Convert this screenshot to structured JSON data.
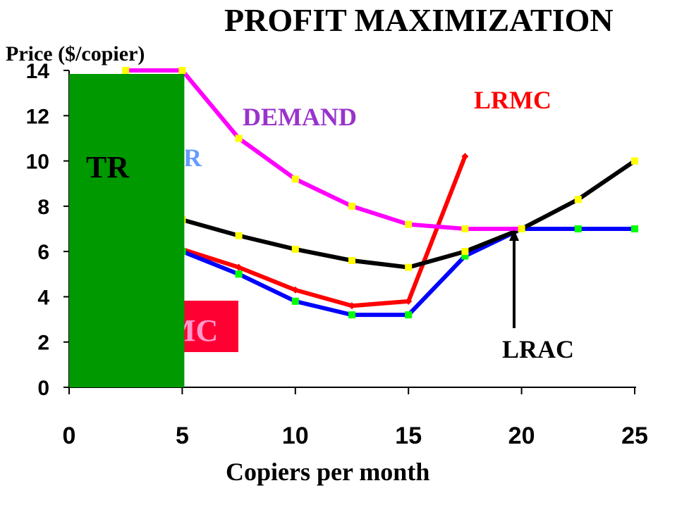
{
  "chart_data": {
    "type": "line",
    "title": "PROFIT MAXIMIZATION",
    "ylabel": "Price ($/copier)",
    "xlabel": "Copiers per month",
    "xlim": [
      0,
      25
    ],
    "ylim": [
      0,
      14
    ],
    "x_ticks": [
      "0",
      "5",
      "10",
      "15",
      "20",
      "25"
    ],
    "y_ticks": [
      "0",
      "2",
      "4",
      "6",
      "8",
      "10",
      "12",
      "14"
    ],
    "grid": false,
    "series": [
      {
        "name": "DEMAND",
        "color": "#ff00ff",
        "marker_color": "#ffff00",
        "points": [
          [
            2.5,
            14
          ],
          [
            5,
            14
          ],
          [
            7.5,
            11
          ],
          [
            10,
            9.2
          ],
          [
            12.5,
            8
          ],
          [
            15,
            7.2
          ],
          [
            17.5,
            7
          ],
          [
            20,
            7
          ]
        ]
      },
      {
        "name": "MR",
        "color": "#0000ff",
        "marker_color": "#00ff00",
        "points": [
          [
            2.5,
            7
          ],
          [
            5,
            6
          ],
          [
            7.5,
            5
          ],
          [
            10,
            3.8
          ],
          [
            12.5,
            3.2
          ],
          [
            15,
            3.2
          ],
          [
            17.5,
            5.8
          ],
          [
            20,
            7
          ],
          [
            22.5,
            7
          ],
          [
            25,
            7
          ]
        ]
      },
      {
        "name": "LRMC",
        "color": "#ff0000",
        "marker_color": "#ff0000",
        "points": [
          [
            2.5,
            7
          ],
          [
            5,
            6.1
          ],
          [
            7.5,
            5.3
          ],
          [
            10,
            4.3
          ],
          [
            12.5,
            3.6
          ],
          [
            15,
            3.8
          ],
          [
            17.5,
            10.2
          ]
        ]
      },
      {
        "name": "LRAC",
        "color": "#000000",
        "marker_color": "#ffff00",
        "points": [
          [
            2.5,
            8
          ],
          [
            5,
            7.4
          ],
          [
            7.5,
            6.7
          ],
          [
            10,
            6.1
          ],
          [
            12.5,
            5.6
          ],
          [
            15,
            5.3
          ],
          [
            17.5,
            6
          ],
          [
            20,
            7
          ],
          [
            22.5,
            8.3
          ],
          [
            25,
            10
          ]
        ]
      }
    ],
    "tr_box": {
      "label": "TR",
      "x_range": [
        0,
        5
      ],
      "y_range": [
        0,
        14
      ]
    },
    "mc_box": {
      "label": "MC"
    },
    "annotations": {
      "demand": "DEMAND",
      "mr": "MR",
      "lrmc": "LRMC",
      "lrac": "LRAC"
    },
    "colors": {
      "demand_label": "#9933cc",
      "mr_label": "#6699ff",
      "lrmc_label": "#ff0000",
      "lrac_label": "#000000",
      "tr_fill": "#009900",
      "mc_box": "#ff0033"
    }
  }
}
